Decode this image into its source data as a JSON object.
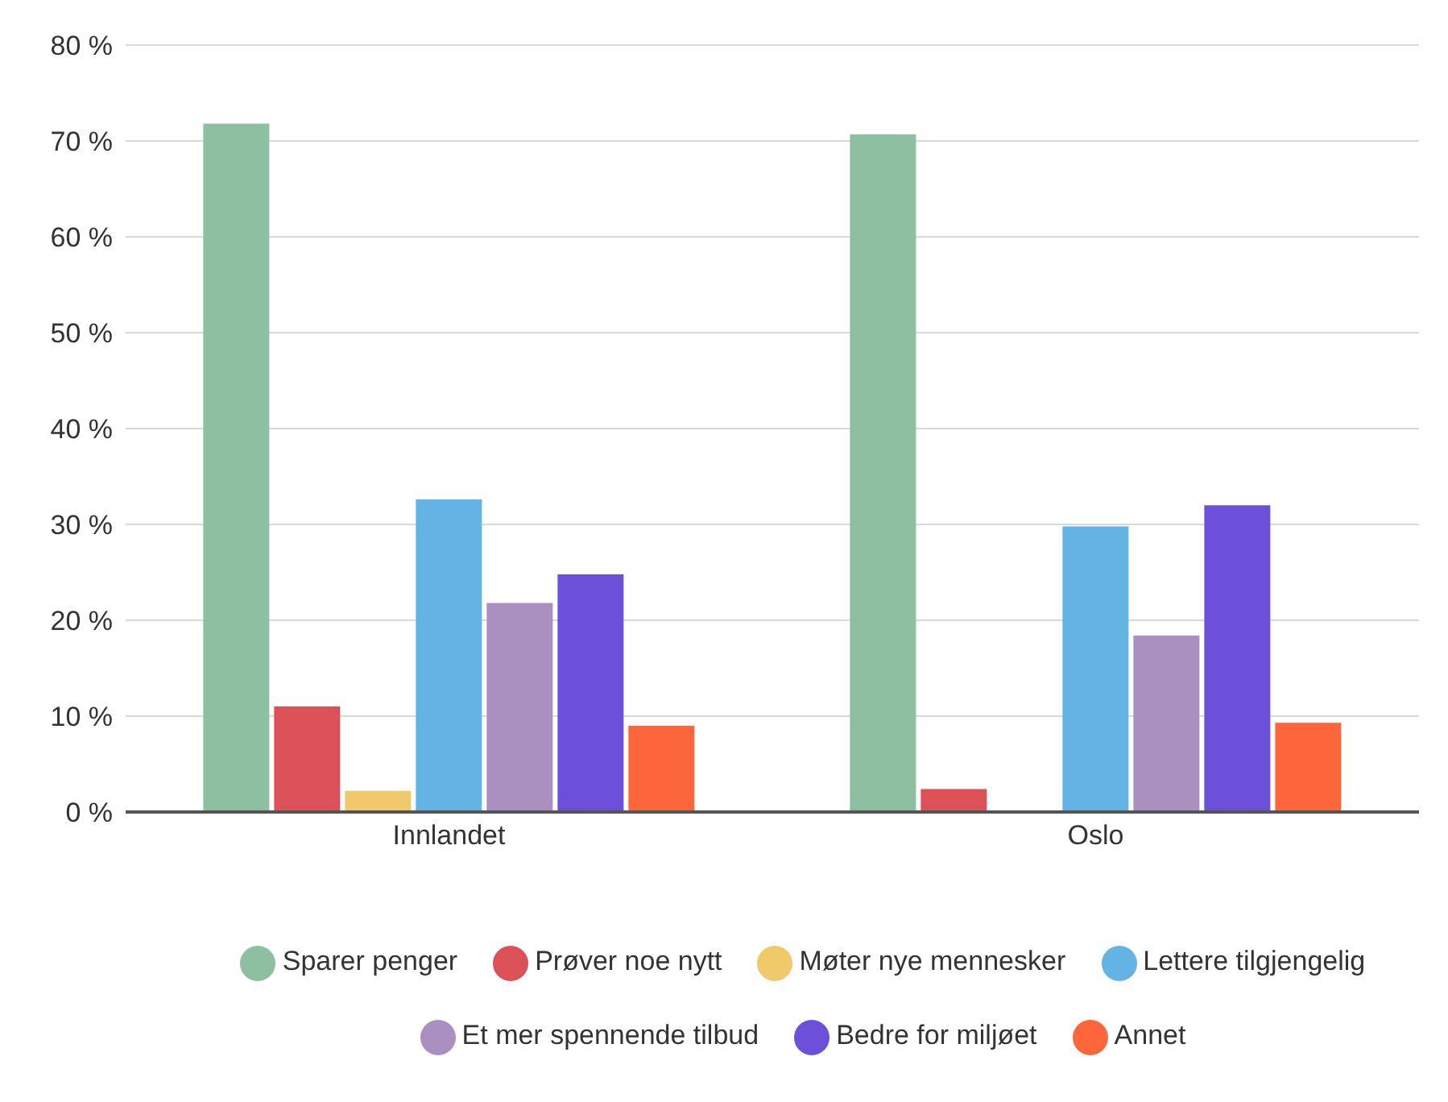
{
  "chart_data": {
    "type": "bar",
    "categories": [
      "Innlandet",
      "Oslo"
    ],
    "series": [
      {
        "name": "Sparer penger",
        "color": "#8cc0a1",
        "values": [
          71.8,
          70.7
        ]
      },
      {
        "name": "Prøver noe nytt",
        "color": "#dc5157",
        "values": [
          11.0,
          2.4
        ]
      },
      {
        "name": "Møter nye mennesker",
        "color": "#f0c96b",
        "values": [
          2.2,
          0
        ]
      },
      {
        "name": "Lettere tilgjengelig",
        "color": "#63b3e4",
        "values": [
          32.6,
          29.8
        ]
      },
      {
        "name": "Et mer spennende tilbud",
        "color": "#aa90c0",
        "values": [
          21.8,
          18.4
        ]
      },
      {
        "name": "Bedre for miljøet",
        "color": "#6c50d9",
        "values": [
          24.8,
          32.0
        ]
      },
      {
        "name": "Annet",
        "color": "#fc663a",
        "values": [
          9.0,
          9.3
        ]
      }
    ],
    "ylim": [
      0,
      80
    ],
    "yticks": [
      {
        "value": 0,
        "label": "0 %"
      },
      {
        "value": 10,
        "label": "10 %"
      },
      {
        "value": 20,
        "label": "20 %"
      },
      {
        "value": 30,
        "label": "30 %"
      },
      {
        "value": 40,
        "label": "40 %"
      },
      {
        "value": 50,
        "label": "50 %"
      },
      {
        "value": 60,
        "label": "60 %"
      },
      {
        "value": 70,
        "label": "70 %"
      },
      {
        "value": 80,
        "label": "80 %"
      }
    ],
    "grid": "y",
    "legend": "bottom"
  }
}
